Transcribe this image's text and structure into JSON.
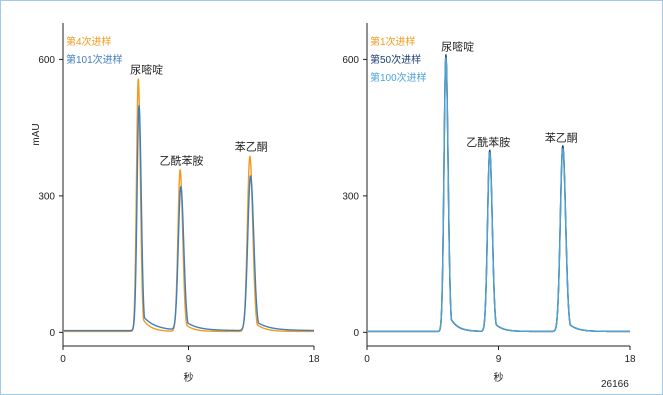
{
  "figure_id": "26166",
  "colors": {
    "orange": "#f39a1e",
    "mid_blue": "#3f7fc0",
    "navy": "#1d3f6e",
    "light_blue": "#4aa3d8",
    "axis": "#222222"
  },
  "chart_data": [
    {
      "type": "line",
      "title": "",
      "xlabel": "秒",
      "ylabel": "mAU",
      "xlim": [
        0,
        18
      ],
      "ylim": [
        -30,
        680
      ],
      "xticks": [
        0,
        9,
        18
      ],
      "yticks": [
        0,
        300,
        600
      ],
      "grid": false,
      "legend_position": "top-left",
      "series": [
        {
          "name": "第4次进样",
          "color": "#f39a1e",
          "baseline": 2,
          "peaks": [
            {
              "rt": 5.4,
              "height": 555,
              "left_sigma": 0.13,
              "tail": 0.55
            },
            {
              "rt": 8.4,
              "height": 355,
              "left_sigma": 0.16,
              "tail": 0.55
            },
            {
              "rt": 13.4,
              "height": 385,
              "left_sigma": 0.18,
              "tail": 0.62
            }
          ]
        },
        {
          "name": "第101次进样",
          "color": "#3f7fc0",
          "baseline": 4,
          "peaks": [
            {
              "rt": 5.45,
              "height": 495,
              "left_sigma": 0.14,
              "tail": 0.85
            },
            {
              "rt": 8.45,
              "height": 315,
              "left_sigma": 0.18,
              "tail": 0.85
            },
            {
              "rt": 13.45,
              "height": 340,
              "left_sigma": 0.2,
              "tail": 0.92
            }
          ]
        }
      ],
      "peak_annotations": [
        {
          "label": "尿嘧啶",
          "x": 6.0,
          "y": 565
        },
        {
          "label": "乙酰苯胺",
          "x": 8.5,
          "y": 365
        },
        {
          "label": "苯乙酮",
          "x": 13.5,
          "y": 395
        }
      ]
    },
    {
      "type": "line",
      "title": "",
      "xlabel": "秒",
      "ylabel": "",
      "xlim": [
        0,
        18
      ],
      "ylim": [
        -30,
        680
      ],
      "xticks": [
        0,
        9,
        18
      ],
      "yticks": [
        0,
        300,
        600
      ],
      "grid": false,
      "legend_position": "top-left",
      "series": [
        {
          "name": "第1次进样",
          "color": "#f39a1e",
          "baseline": 2,
          "peaks": [
            {
              "rt": 5.4,
              "height": 605,
              "left_sigma": 0.13,
              "tail": 0.5
            },
            {
              "rt": 8.4,
              "height": 395,
              "left_sigma": 0.15,
              "tail": 0.5
            },
            {
              "rt": 13.4,
              "height": 405,
              "left_sigma": 0.17,
              "tail": 0.55
            }
          ]
        },
        {
          "name": "第50次进样",
          "color": "#1d3f6e",
          "baseline": 2,
          "peaks": [
            {
              "rt": 5.4,
              "height": 608,
              "left_sigma": 0.13,
              "tail": 0.5
            },
            {
              "rt": 8.4,
              "height": 398,
              "left_sigma": 0.15,
              "tail": 0.5
            },
            {
              "rt": 13.4,
              "height": 408,
              "left_sigma": 0.17,
              "tail": 0.55
            }
          ]
        },
        {
          "name": "第100次进样",
          "color": "#4aa3d8",
          "baseline": 2,
          "peaks": [
            {
              "rt": 5.4,
              "height": 602,
              "left_sigma": 0.13,
              "tail": 0.52
            },
            {
              "rt": 8.4,
              "height": 393,
              "left_sigma": 0.15,
              "tail": 0.52
            },
            {
              "rt": 13.4,
              "height": 402,
              "left_sigma": 0.17,
              "tail": 0.57
            }
          ]
        }
      ],
      "peak_annotations": [
        {
          "label": "尿嘧啶",
          "x": 6.2,
          "y": 615
        },
        {
          "label": "乙酰苯胺",
          "x": 8.3,
          "y": 405
        },
        {
          "label": "苯乙酮",
          "x": 13.3,
          "y": 415
        }
      ]
    }
  ]
}
